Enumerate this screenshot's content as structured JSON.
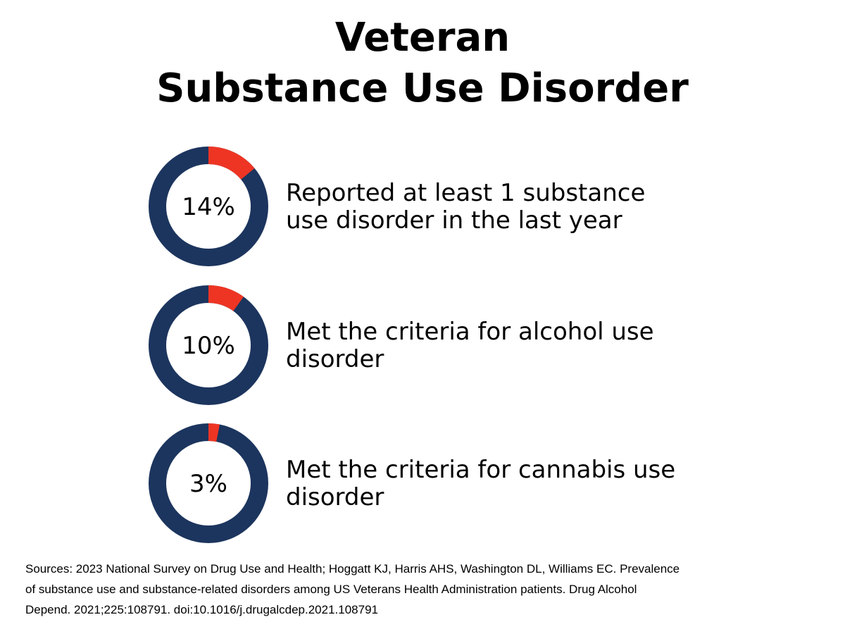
{
  "title": {
    "line1": "Veteran",
    "line2": "Substance Use Disorder"
  },
  "colors": {
    "filled": "#ee3524",
    "remainder": "#1c355e"
  },
  "chart_data": {
    "type": "pie",
    "variant": "donut",
    "items": [
      {
        "value": 14,
        "value_label": "14%",
        "label": "Reported at least 1 substance use disorder in the last year",
        "label_lines": [
          "Reported at least 1 substance",
          "use disorder in the last year"
        ]
      },
      {
        "value": 10,
        "value_label": "10%",
        "label": "Met the criteria for alcohol use disorder",
        "label_lines": [
          "Met the criteria for alcohol use",
          "disorder"
        ]
      },
      {
        "value": 3,
        "value_label": "3%",
        "label": "Met the criteria for cannabis use disorder",
        "label_lines": [
          "Met the criteria for cannabis use",
          "disorder"
        ]
      }
    ]
  },
  "sources": {
    "lines": [
      "Sources: 2023 National Survey on Drug Use and Health; Hoggatt KJ, Harris AHS, Washington DL, Williams EC. Prevalence",
      "of substance use and substance-related disorders among US Veterans Health Administration patients. Drug Alcohol",
      "Depend. 2021;225:108791. doi:10.1016/j.drugalcdep.2021.108791"
    ]
  }
}
